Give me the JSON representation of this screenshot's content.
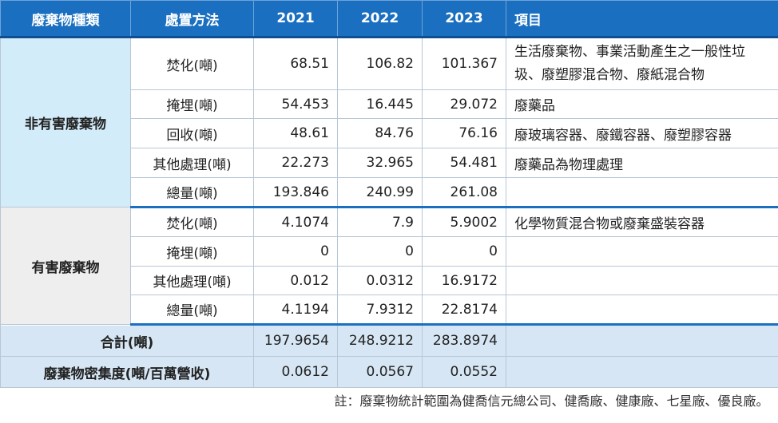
{
  "header": {
    "col_type": "廢棄物種類",
    "col_method": "處置方法",
    "col_2021": "2021",
    "col_2022": "2022",
    "col_2023": "2023",
    "col_item": "項目"
  },
  "groups": {
    "non_hazardous": "非有害廢棄物",
    "hazardous": "有害廢棄物"
  },
  "rows": [
    {
      "method": "焚化(噸)",
      "v2021": "68.51",
      "v2022": "106.82",
      "v2023": "101.367",
      "item": "生活廢棄物、事業活動產生之一般性垃圾、廢塑膠混合物、廢紙混合物"
    },
    {
      "method": "掩埋(噸)",
      "v2021": "54.453",
      "v2022": "16.445",
      "v2023": "29.072",
      "item": "廢藥品"
    },
    {
      "method": "回收(噸)",
      "v2021": "48.61",
      "v2022": "84.76",
      "v2023": "76.16",
      "item": "廢玻璃容器、廢鐵容器、廢塑膠容器"
    },
    {
      "method": "其他處理(噸)",
      "v2021": "22.273",
      "v2022": "32.965",
      "v2023": "54.481",
      "item": "廢藥品為物理處理"
    },
    {
      "method": "總量(噸)",
      "v2021": "193.846",
      "v2022": "240.99",
      "v2023": "261.08",
      "item": ""
    },
    {
      "method": "焚化(噸)",
      "v2021": "4.1074",
      "v2022": "7.9",
      "v2023": "5.9002",
      "item": "化學物質混合物或廢棄盛裝容器"
    },
    {
      "method": "掩埋(噸)",
      "v2021": "0",
      "v2022": "0",
      "v2023": "0",
      "item": ""
    },
    {
      "method": "其他處理(噸)",
      "v2021": "0.012",
      "v2022": "0.0312",
      "v2023": "16.9172",
      "item": ""
    },
    {
      "method": "總量(噸)",
      "v2021": "4.1194",
      "v2022": "7.9312",
      "v2023": "22.8174",
      "item": ""
    }
  ],
  "total": {
    "label": "合計(噸)",
    "v2021": "197.9654",
    "v2022": "248.9212",
    "v2023": "283.8974",
    "item": ""
  },
  "intensity": {
    "label": "廢棄物密集度(噸/百萬營收)",
    "v2021": "0.0612",
    "v2022": "0.0567",
    "v2023": "0.0552",
    "item": ""
  },
  "footnote": "註：廢棄物統計範圍為健喬信元總公司、健喬廠、健康廠、七星廠、優良廠。",
  "colors": {
    "header_bg": "#1a6fc0",
    "non_hazardous_bg": "#d3ecfa",
    "hazardous_bg": "#eeeeee",
    "summary_bg": "#d6e6f4"
  }
}
